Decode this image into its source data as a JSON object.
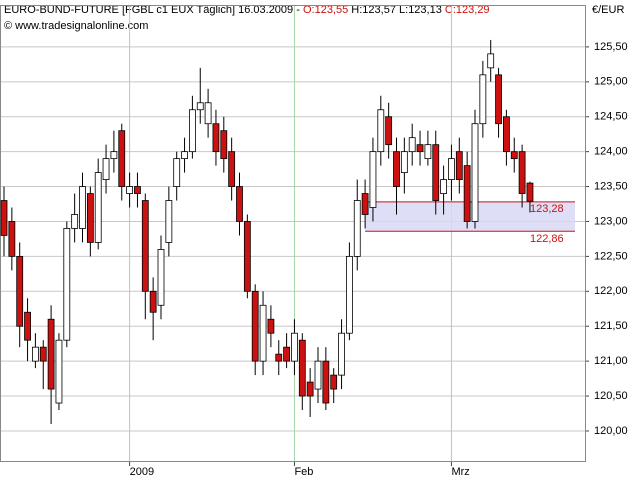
{
  "chart_data": {
    "type": "candlestick",
    "header": {
      "instrument": "EURO-BUND-FUTURE [FGBL c1 EUX  Täglich]",
      "date": "16.03.2009",
      "separator": "-",
      "open": "O:123,55",
      "high": "H:123,57",
      "low": "L:123,13",
      "close": "C:123,29"
    },
    "source": "© www.tradesignalonline.com",
    "unit": "€/EUR",
    "categories": [
      null,
      null,
      null,
      null,
      null,
      null,
      null,
      null,
      null,
      null,
      null,
      null,
      null,
      null,
      null,
      null,
      "2009",
      null,
      null,
      null,
      null,
      null,
      null,
      null,
      null,
      null,
      null,
      null,
      null,
      null,
      null,
      null,
      null,
      null,
      null,
      null,
      null,
      "Feb",
      null,
      null,
      null,
      null,
      null,
      null,
      null,
      null,
      null,
      null,
      null,
      null,
      null,
      null,
      null,
      null,
      null,
      null,
      null,
      "Mrz",
      null,
      null,
      null,
      null,
      null,
      null,
      null,
      null,
      null,
      null
    ],
    "open": [
      123.3,
      123.0,
      122.5,
      121.7,
      121.0,
      121.2,
      121.6,
      120.4,
      121.3,
      122.9,
      122.9,
      123.4,
      122.7,
      123.6,
      123.9,
      124.3,
      123.4,
      123.5,
      123.3,
      122.0,
      121.8,
      122.7,
      123.5,
      123.9,
      124.0,
      124.6,
      124.4,
      124.4,
      124.3,
      124.0,
      123.5,
      123.0,
      122.0,
      121.0,
      121.6,
      121.1,
      121.2,
      121.0,
      121.3,
      120.7,
      120.6,
      121.0,
      120.8,
      120.8,
      121.4,
      122.5,
      123.4,
      123.2,
      124.0,
      124.5,
      124.0,
      123.7,
      124.0,
      124.1,
      123.9,
      124.1,
      123.4,
      123.6,
      124.0,
      123.8,
      123.0,
      124.4,
      125.2,
      125.1,
      124.5,
      124.0,
      124.0,
      123.55
    ],
    "high": [
      123.5,
      123.2,
      122.7,
      121.9,
      121.4,
      121.3,
      121.8,
      121.4,
      123.0,
      123.4,
      123.7,
      123.5,
      123.9,
      124.1,
      124.3,
      124.4,
      123.7,
      123.7,
      123.4,
      122.2,
      122.8,
      123.5,
      124.0,
      124.2,
      124.8,
      125.2,
      124.9,
      124.6,
      124.5,
      124.2,
      123.7,
      123.1,
      122.1,
      122.0,
      121.8,
      121.3,
      121.4,
      121.6,
      121.4,
      120.9,
      121.2,
      121.2,
      120.9,
      121.6,
      122.7,
      123.6,
      123.6,
      124.2,
      124.8,
      124.7,
      124.2,
      124.2,
      124.4,
      124.3,
      124.3,
      124.3,
      123.8,
      124.1,
      124.2,
      124.0,
      124.6,
      125.3,
      125.6,
      125.2,
      124.6,
      124.2,
      124.1,
      123.57
    ],
    "low": [
      122.5,
      122.3,
      121.2,
      121.0,
      120.9,
      120.6,
      120.1,
      120.3,
      121.2,
      122.7,
      122.7,
      122.5,
      122.6,
      123.4,
      123.7,
      123.3,
      123.2,
      123.2,
      121.6,
      121.3,
      121.6,
      122.5,
      123.3,
      123.7,
      123.9,
      124.4,
      124.2,
      123.8,
      123.7,
      123.3,
      122.8,
      121.9,
      120.8,
      120.8,
      121.2,
      120.8,
      120.9,
      120.8,
      120.3,
      120.2,
      120.4,
      120.3,
      120.4,
      120.6,
      121.3,
      122.3,
      122.9,
      123.0,
      123.8,
      123.9,
      123.1,
      123.4,
      123.8,
      123.8,
      123.8,
      123.1,
      123.1,
      123.3,
      123.4,
      122.9,
      122.9,
      124.2,
      125.0,
      124.2,
      123.8,
      123.7,
      123.2,
      123.13
    ],
    "close": [
      122.8,
      122.5,
      121.5,
      121.3,
      121.2,
      121.0,
      120.6,
      121.3,
      122.9,
      123.1,
      123.5,
      122.7,
      123.7,
      123.9,
      124.0,
      123.5,
      123.5,
      123.4,
      122.0,
      121.7,
      122.6,
      123.3,
      123.9,
      124.0,
      124.6,
      124.7,
      124.7,
      124.0,
      123.9,
      123.5,
      123.0,
      122.0,
      121.0,
      121.8,
      121.4,
      121.0,
      121.0,
      121.4,
      120.5,
      120.5,
      121.0,
      120.4,
      120.6,
      121.4,
      122.5,
      123.3,
      123.1,
      124.0,
      124.6,
      124.1,
      123.5,
      124.0,
      124.2,
      124.0,
      124.1,
      123.3,
      123.6,
      123.9,
      123.6,
      123.0,
      124.4,
      125.1,
      125.4,
      124.4,
      124.0,
      123.9,
      123.4,
      123.29
    ],
    "up_color": "#ffffff",
    "down_color": "#cc1111",
    "ylim": [
      119.57,
      126.1
    ],
    "yticks": [
      {
        "value": 120.0,
        "label": "120,00"
      },
      {
        "value": 120.5,
        "label": "120,50"
      },
      {
        "value": 121.0,
        "label": "121,00"
      },
      {
        "value": 121.5,
        "label": "121,50"
      },
      {
        "value": 122.0,
        "label": "122,00"
      },
      {
        "value": 122.5,
        "label": "122,50"
      },
      {
        "value": 123.0,
        "label": "123,00"
      },
      {
        "value": 123.5,
        "label": "123,50"
      },
      {
        "value": 124.0,
        "label": "124,00"
      },
      {
        "value": 124.5,
        "label": "124,50"
      },
      {
        "value": 125.0,
        "label": "125,00"
      },
      {
        "value": 125.5,
        "label": "125,50"
      }
    ],
    "grid": true,
    "zone": {
      "high": 123.28,
      "high_label": "123,28",
      "low": 122.86,
      "low_label": "122,86"
    }
  }
}
